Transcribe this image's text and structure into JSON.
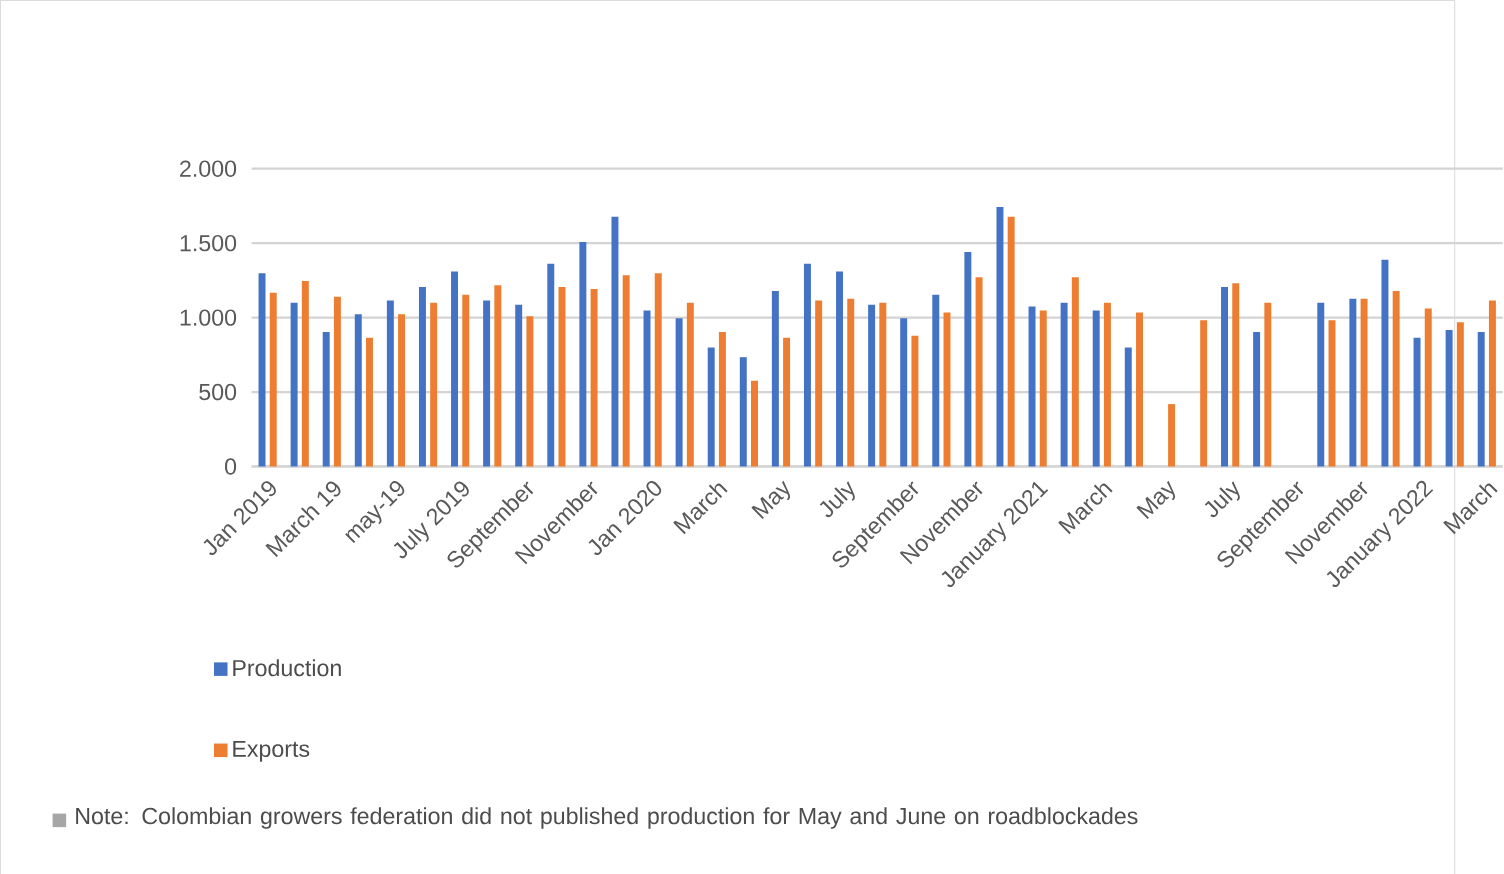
{
  "chart_data": {
    "type": "bar",
    "categories": [
      "Jan 2019",
      null,
      "March 19",
      null,
      "may-19",
      null,
      "July 2019",
      null,
      "September",
      null,
      "November",
      null,
      "Jan 2020",
      null,
      "March",
      null,
      "May",
      null,
      "July",
      null,
      "September",
      null,
      "November",
      null,
      "January 2021",
      null,
      "March",
      null,
      "May",
      null,
      "July",
      null,
      "September",
      null,
      "November",
      null,
      "January 2022",
      null,
      "March"
    ],
    "series": [
      {
        "name": "Production",
        "color": "#4472c4",
        "values": [
          1297,
          1100,
          904,
          1022,
          1114,
          1205,
          1310,
          1114,
          1087,
          1362,
          1507,
          1677,
          1048,
          996,
          799,
          734,
          1179,
          1362,
          1310,
          1087,
          996,
          1153,
          1441,
          1742,
          1074,
          1100,
          1048,
          799,
          null,
          null,
          1205,
          904,
          null,
          1100,
          1127,
          1389,
          865,
          917,
          904
        ]
      },
      {
        "name": "Exports",
        "color": "#ed7d31",
        "values": [
          1166,
          1245,
          1140,
          865,
          1022,
          1100,
          1153,
          1218,
          1009,
          1205,
          1192,
          1284,
          1297,
          1100,
          904,
          576,
          865,
          1114,
          1127,
          1100,
          878,
          1035,
          1271,
          1677,
          1048,
          1271,
          1100,
          1035,
          419,
          983,
          1231,
          1100,
          null,
          983,
          1127,
          1179,
          1061,
          969,
          1114
        ]
      }
    ],
    "ylim": [
      0,
      2000
    ],
    "yticks": [
      {
        "value": 0,
        "label": "0"
      },
      {
        "value": 500,
        "label": "500"
      },
      {
        "value": 1000,
        "label": "1.000"
      },
      {
        "value": 1500,
        "label": "1.500"
      },
      {
        "value": 2000,
        "label": "2.000"
      }
    ],
    "grid": "y",
    "legend": "bottom",
    "annotations": [
      "Note: Colombian growers federation did not published production for May and June on roadblockades"
    ]
  }
}
